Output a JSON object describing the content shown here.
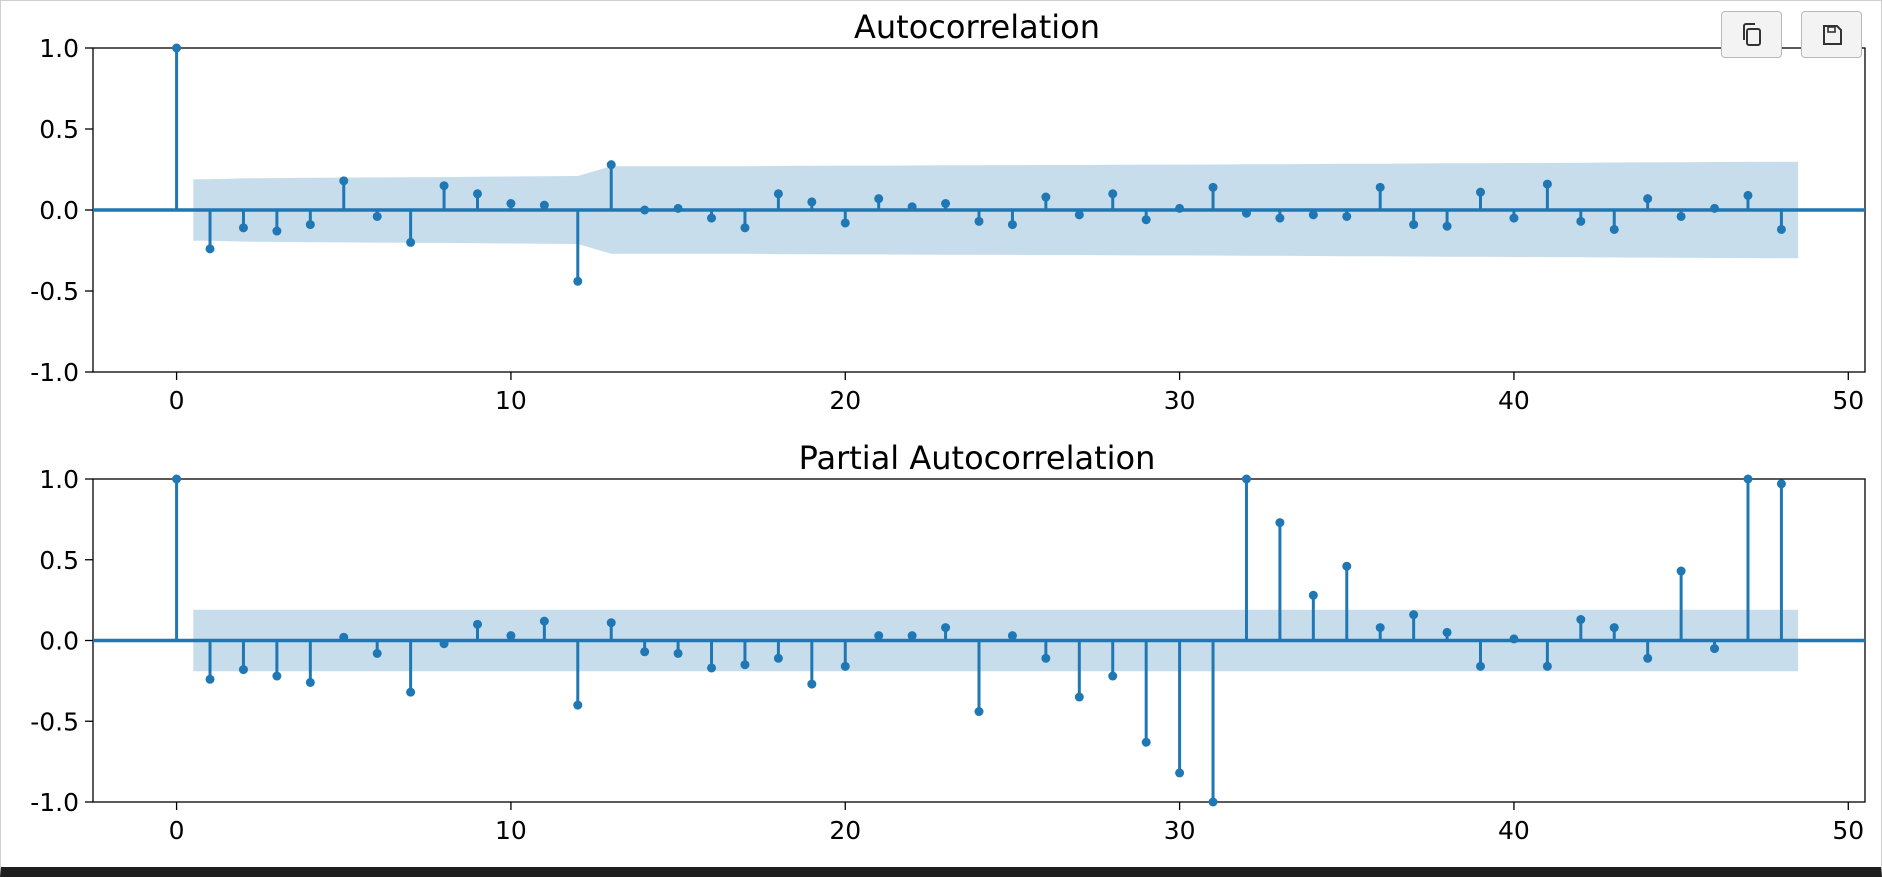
{
  "toolbar": {
    "copy_icon": "copy-icon",
    "save_icon": "save-icon"
  },
  "style": {
    "stem_color": "#1f77b4",
    "band_color": "#1f77b4",
    "band_opacity": 0.25
  },
  "chart_data": [
    {
      "type": "stem",
      "title": "Autocorrelation",
      "xlim": [
        -2.5,
        50.5
      ],
      "ylim": [
        -1.0,
        1.0
      ],
      "xticks": [
        0,
        10,
        20,
        30,
        40,
        50
      ],
      "yticks": [
        1.0,
        0.5,
        0.0,
        -0.5,
        -1.0
      ],
      "ytick_labels": [
        "1.0",
        "0.5",
        "0.0",
        "-0.5",
        "-1.0"
      ],
      "lags": [
        0,
        1,
        2,
        3,
        4,
        5,
        6,
        7,
        8,
        9,
        10,
        11,
        12,
        13,
        14,
        15,
        16,
        17,
        18,
        19,
        20,
        21,
        22,
        23,
        24,
        25,
        26,
        27,
        28,
        29,
        30,
        31,
        32,
        33,
        34,
        35,
        36,
        37,
        38,
        39,
        40,
        41,
        42,
        43,
        44,
        45,
        46,
        47,
        48
      ],
      "values": [
        1.0,
        -0.24,
        -0.11,
        -0.13,
        -0.09,
        0.18,
        -0.04,
        -0.2,
        0.15,
        0.1,
        0.04,
        0.03,
        -0.44,
        0.28,
        0.0,
        0.01,
        -0.05,
        -0.11,
        0.1,
        0.05,
        -0.08,
        0.07,
        0.02,
        0.04,
        -0.07,
        -0.09,
        0.08,
        -0.03,
        0.1,
        -0.06,
        0.01,
        0.14,
        -0.02,
        -0.05,
        -0.03,
        -0.04,
        0.14,
        -0.09,
        -0.1,
        0.11,
        -0.05,
        0.16,
        -0.07,
        -0.12,
        0.07,
        -0.04,
        0.01,
        0.09,
        -0.12
      ],
      "confidence_band": {
        "lags": [
          0.5,
          1,
          2,
          3,
          4,
          5,
          6,
          7,
          8,
          9,
          10,
          11,
          12,
          13,
          14,
          15,
          16,
          17,
          18,
          19,
          20,
          21,
          22,
          23,
          24,
          25,
          26,
          27,
          28,
          29,
          30,
          31,
          32,
          33,
          34,
          35,
          36,
          37,
          38,
          39,
          40,
          41,
          42,
          43,
          44,
          45,
          46,
          47,
          48,
          48.5
        ],
        "upper": [
          0.19,
          0.19,
          0.195,
          0.197,
          0.199,
          0.2,
          0.201,
          0.202,
          0.203,
          0.205,
          0.207,
          0.208,
          0.21,
          0.27,
          0.27,
          0.27,
          0.27,
          0.27,
          0.272,
          0.273,
          0.274,
          0.274,
          0.275,
          0.276,
          0.276,
          0.277,
          0.278,
          0.278,
          0.279,
          0.28,
          0.28,
          0.281,
          0.282,
          0.283,
          0.284,
          0.285,
          0.286,
          0.287,
          0.288,
          0.289,
          0.29,
          0.291,
          0.292,
          0.293,
          0.294,
          0.295,
          0.296,
          0.297,
          0.298,
          0.298
        ]
      }
    },
    {
      "type": "stem",
      "title": "Partial Autocorrelation",
      "xlim": [
        -2.5,
        50.5
      ],
      "ylim": [
        -1.0,
        1.0
      ],
      "xticks": [
        0,
        10,
        20,
        30,
        40,
        50
      ],
      "yticks": [
        1.0,
        0.5,
        0.0,
        -0.5,
        -1.0
      ],
      "ytick_labels": [
        "1.0",
        "0.5",
        "0.0",
        "-0.5",
        "-1.0"
      ],
      "lags": [
        0,
        1,
        2,
        3,
        4,
        5,
        6,
        7,
        8,
        9,
        10,
        11,
        12,
        13,
        14,
        15,
        16,
        17,
        18,
        19,
        20,
        21,
        22,
        23,
        24,
        25,
        26,
        27,
        28,
        29,
        30,
        31,
        32,
        33,
        34,
        35,
        36,
        37,
        38,
        39,
        40,
        41,
        42,
        43,
        44,
        45,
        46,
        47,
        48
      ],
      "values": [
        1.0,
        -0.24,
        -0.18,
        -0.22,
        -0.26,
        0.02,
        -0.08,
        -0.32,
        -0.02,
        0.1,
        0.03,
        0.12,
        -0.4,
        0.11,
        -0.07,
        -0.08,
        -0.17,
        -0.15,
        -0.11,
        -0.27,
        -0.16,
        0.03,
        0.03,
        0.08,
        -0.44,
        0.03,
        -0.11,
        -0.35,
        -0.22,
        -0.63,
        -0.82,
        -1.0,
        1.0,
        0.73,
        0.28,
        0.46,
        0.08,
        0.16,
        0.05,
        -0.16,
        0.01,
        -0.16,
        0.13,
        0.08,
        -0.11,
        0.43,
        -0.05,
        1.0,
        0.97
      ],
      "confidence_band": {
        "lags": [
          0.5,
          48.5
        ],
        "upper": [
          0.19,
          0.19
        ]
      }
    }
  ]
}
